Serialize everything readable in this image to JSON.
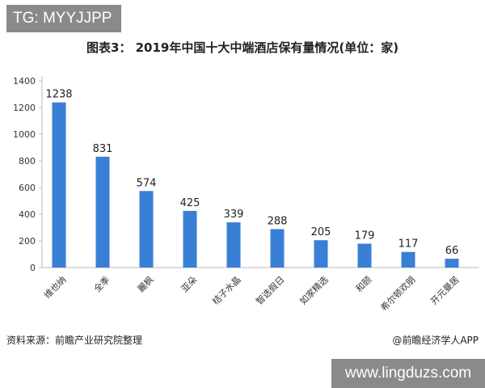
{
  "overlay_tag": "TG: MYYJJPP",
  "watermark_url": "www.lingduzs.com",
  "source_left": "资料来源：前瞻产业研究院整理",
  "source_right": "@前瞻经济学人APP",
  "colors": {
    "bar": "#3a7fd6",
    "axis": "#bbbbbb",
    "text": "#222222"
  },
  "chart_data": {
    "type": "bar",
    "title": "图表3： 2019年中国十大中端酒店保有量情况(单位：家)",
    "categories": [
      "维也纳",
      "全季",
      "麗枫",
      "亚朵",
      "桔子水晶",
      "智选假日",
      "如家精选",
      "和颐",
      "希尔顿欢朋",
      "开元曼居"
    ],
    "values": [
      1238,
      831,
      574,
      425,
      339,
      288,
      205,
      179,
      117,
      66
    ],
    "yticks": [
      0,
      200,
      400,
      600,
      800,
      1000,
      1200,
      1400
    ],
    "ylim": [
      0,
      1400
    ],
    "xlabel": "",
    "ylabel": "",
    "grid": false,
    "legend": "none"
  }
}
